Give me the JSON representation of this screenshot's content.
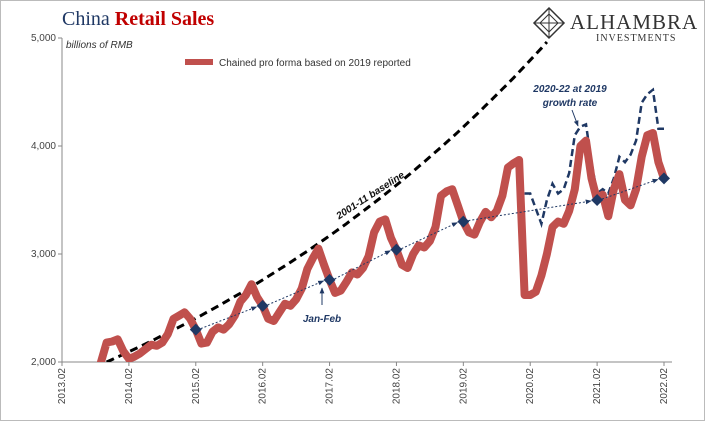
{
  "chart_data": {
    "type": "line",
    "title": "China",
    "title_highlight": "Retail Sales",
    "subtitle": "billions of RMB",
    "logo": {
      "name": "ALHAMBRA",
      "tagline": "INVESTMENTS"
    },
    "annotations": {
      "baseline": "2001-11 baseline",
      "jan_feb": "Jan-Feb",
      "growth": [
        "2020-22 at 2019",
        "growth rate"
      ]
    },
    "legend": "top-center",
    "categories": [
      "2013.02",
      null,
      null,
      null,
      null,
      null,
      null,
      null,
      null,
      null,
      null,
      null,
      "2014.02",
      null,
      null,
      null,
      null,
      null,
      null,
      null,
      null,
      null,
      null,
      null,
      "2015.02",
      null,
      null,
      null,
      null,
      null,
      null,
      null,
      null,
      null,
      null,
      null,
      "2016.02",
      null,
      null,
      null,
      null,
      null,
      null,
      null,
      null,
      null,
      null,
      null,
      "2017.02",
      null,
      null,
      null,
      null,
      null,
      null,
      null,
      null,
      null,
      null,
      null,
      "2018.02",
      null,
      null,
      null,
      null,
      null,
      null,
      null,
      null,
      null,
      null,
      null,
      "2019.02",
      null,
      null,
      null,
      null,
      null,
      null,
      null,
      null,
      null,
      null,
      null,
      "2020.02",
      null,
      null,
      null,
      null,
      null,
      null,
      null,
      null,
      null,
      null,
      null,
      "2021.02",
      null,
      null,
      null,
      null,
      null,
      null,
      null,
      null,
      null,
      null,
      null,
      "2022.02"
    ],
    "series": [
      {
        "name": "Chained pro forma based on 2019 reported",
        "color": "#c0504d",
        "values": [
          null,
          null,
          null,
          null,
          null,
          null,
          null,
          2000,
          2180,
          2190,
          2210,
          2100,
          2030,
          2050,
          2080,
          2120,
          2160,
          2150,
          2180,
          2260,
          2400,
          2430,
          2460,
          2400,
          2300,
          2170,
          2180,
          2280,
          2320,
          2300,
          2350,
          2430,
          2560,
          2620,
          2720,
          2600,
          2520,
          2400,
          2380,
          2460,
          2540,
          2520,
          2580,
          2680,
          2860,
          2960,
          3050,
          2900,
          2760,
          2640,
          2660,
          2740,
          2830,
          2810,
          2870,
          2980,
          3200,
          3300,
          3320,
          3150,
          3040,
          2900,
          2870,
          3000,
          3080,
          3060,
          3120,
          3250,
          3540,
          3580,
          3600,
          3450,
          3300,
          3200,
          3180,
          3300,
          3390,
          3340,
          3400,
          3540,
          3800,
          3840,
          3870,
          2620,
          2620,
          2650,
          2800,
          3000,
          3250,
          3300,
          3280,
          3400,
          3600,
          4000,
          4050,
          3700,
          3500,
          3550,
          3350,
          3600,
          3740,
          3500,
          3450,
          3600,
          3900,
          4100,
          4120,
          3850,
          3700
        ]
      }
    ],
    "counterfactual": {
      "color": "#1f3864",
      "values": [
        null,
        null,
        null,
        null,
        null,
        null,
        null,
        null,
        null,
        null,
        null,
        null,
        null,
        null,
        null,
        null,
        null,
        null,
        null,
        null,
        null,
        null,
        null,
        null,
        null,
        null,
        null,
        null,
        null,
        null,
        null,
        null,
        null,
        null,
        null,
        null,
        null,
        null,
        null,
        null,
        null,
        null,
        null,
        null,
        null,
        null,
        null,
        null,
        null,
        null,
        null,
        null,
        null,
        null,
        null,
        null,
        null,
        null,
        null,
        null,
        null,
        null,
        null,
        null,
        null,
        null,
        null,
        null,
        null,
        null,
        null,
        null,
        null,
        null,
        null,
        null,
        null,
        null,
        null,
        null,
        null,
        null,
        null,
        3560,
        3560,
        3420,
        3280,
        3500,
        3650,
        3560,
        3600,
        3750,
        4100,
        4180,
        4200,
        3850,
        3560,
        3600,
        3560,
        3700,
        3900,
        3850,
        3920,
        4050,
        4400,
        4480,
        4520,
        4160,
        4160
      ]
    },
    "baseline": {
      "color": "#000000",
      "values": [
        null,
        null,
        null,
        null,
        null,
        null,
        null,
        null,
        2000,
        2023,
        2047,
        2070,
        2094,
        2119,
        2143,
        2168,
        2193,
        2219,
        2245,
        2271,
        2296,
        2323,
        2350,
        2377,
        2404,
        2432,
        2461,
        2489,
        2518,
        2547,
        2577,
        2607,
        2636,
        2667,
        2697,
        2729,
        2760,
        2793,
        2825,
        2858,
        2891,
        2924,
        2958,
        2993,
        3026,
        3061,
        3097,
        3133,
        3169,
        3206,
        3243,
        3280,
        3319,
        3357,
        3396,
        3435,
        3474,
        3514,
        3555,
        3596,
        3638,
        3680,
        3723,
        3766,
        3810,
        3854,
        3899,
        3944,
        3988,
        4034,
        4081,
        4128,
        4176,
        4225,
        4274,
        4323,
        4374,
        4424,
        4476,
        4528,
        4578,
        4631,
        4685,
        4739,
        4794,
        4850,
        4906,
        4963,
        null,
        null,
        null,
        null,
        null,
        null,
        null,
        null,
        null,
        null,
        null,
        null,
        null,
        null,
        null,
        null,
        null,
        null,
        null,
        null,
        null
      ]
    },
    "feb_markers": {
      "color": "#1f3864",
      "values": [
        null,
        null,
        null,
        null,
        null,
        null,
        null,
        null,
        null,
        null,
        null,
        null,
        null,
        null,
        null,
        null,
        null,
        null,
        null,
        null,
        null,
        null,
        null,
        null,
        2300,
        null,
        null,
        null,
        null,
        null,
        null,
        null,
        null,
        null,
        null,
        null,
        2520,
        null,
        null,
        null,
        null,
        null,
        null,
        null,
        null,
        null,
        null,
        null,
        2760,
        null,
        null,
        null,
        null,
        null,
        null,
        null,
        null,
        null,
        null,
        null,
        3040,
        null,
        null,
        null,
        null,
        null,
        null,
        null,
        null,
        null,
        null,
        null,
        3300,
        null,
        null,
        null,
        null,
        null,
        null,
        null,
        null,
        null,
        null,
        null,
        null,
        null,
        null,
        null,
        null,
        null,
        null,
        null,
        null,
        null,
        null,
        null,
        3500,
        null,
        null,
        null,
        null,
        null,
        null,
        null,
        null,
        null,
        null,
        null,
        3700
      ]
    },
    "ylim": [
      2000,
      5000
    ],
    "yticks": [
      {
        "value": 2000,
        "label": "2,000"
      },
      {
        "value": 3000,
        "label": "3,000"
      },
      {
        "value": 4000,
        "label": "4,000"
      },
      {
        "value": 5000,
        "label": "5,000"
      }
    ]
  }
}
